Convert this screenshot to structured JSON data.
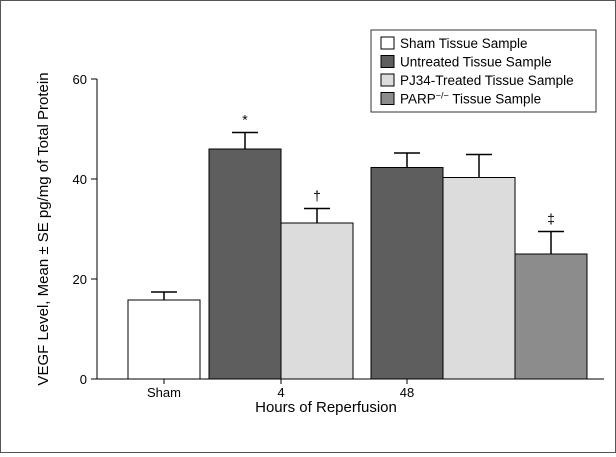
{
  "chart_data": {
    "type": "bar",
    "categories": [
      "Sham",
      "4",
      "48"
    ],
    "xlabel": "Hours of Reperfusion",
    "ylabel": "VEGF Level, Mean ± SE pg/mg of Total Protein",
    "ylim": [
      0,
      60
    ],
    "yticks": [
      0,
      20,
      40,
      60
    ],
    "legend_position": "top-right",
    "series": [
      {
        "name": "Sham Tissue Sample",
        "color": "#ffffff",
        "values": [
          15.8,
          null,
          null
        ],
        "errors": [
          1.6,
          null,
          null
        ],
        "markers": [
          "",
          "",
          ""
        ]
      },
      {
        "name": "Untreated Tissue Sample",
        "color": "#5e5e5e",
        "values": [
          null,
          46.0,
          42.3
        ],
        "errors": [
          null,
          3.3,
          2.9
        ],
        "markers": [
          "",
          "*",
          ""
        ]
      },
      {
        "name": "PJ34-Treated Tissue Sample",
        "color": "#dcdcdc",
        "values": [
          null,
          31.2,
          40.3
        ],
        "errors": [
          null,
          2.9,
          4.6
        ],
        "markers": [
          "",
          "†",
          ""
        ]
      },
      {
        "name": "PARP−/− Tissue Sample",
        "name_parts": [
          "PARP",
          "−/−",
          " Tissue Sample"
        ],
        "color": "#8c8c8c",
        "values": [
          null,
          null,
          25.0
        ],
        "errors": [
          null,
          null,
          4.5
        ],
        "markers": [
          "",
          "",
          "‡"
        ]
      }
    ]
  }
}
